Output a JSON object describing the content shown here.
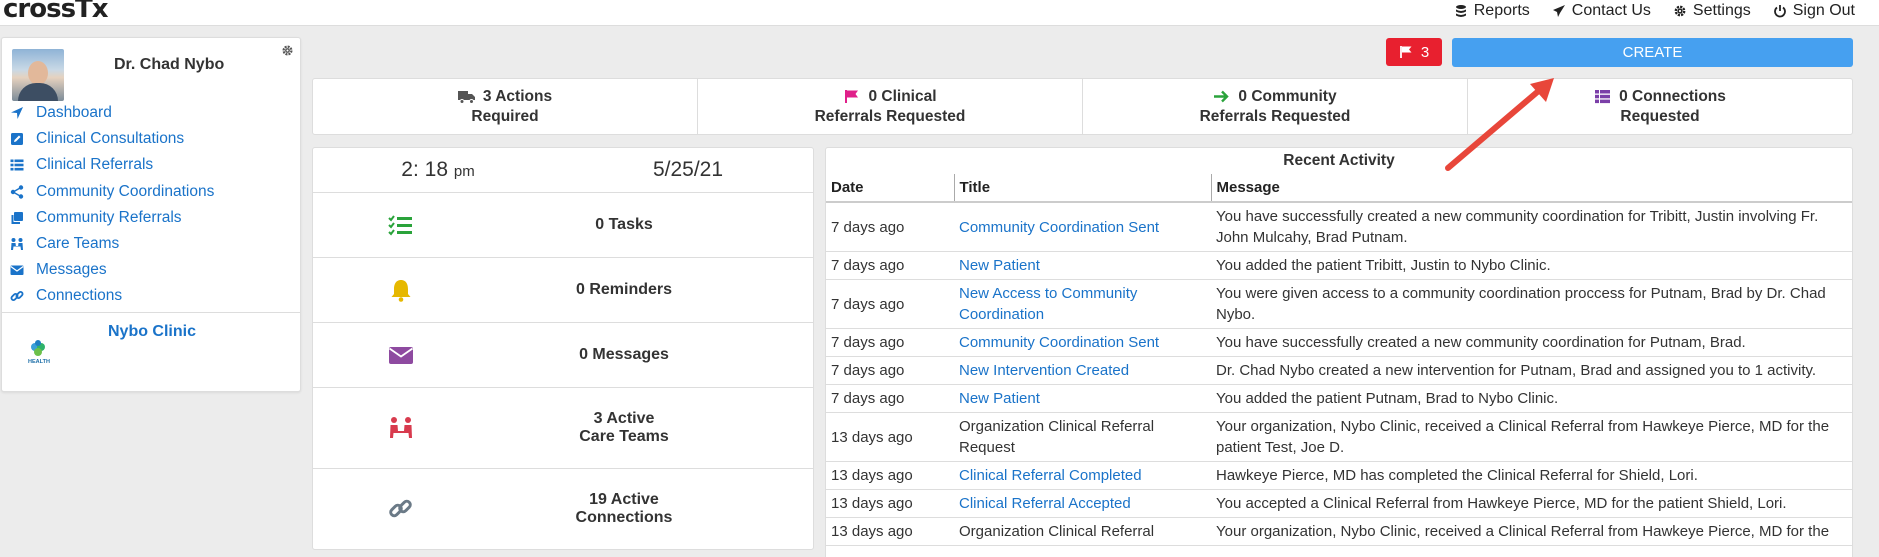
{
  "brand": {
    "logo_text": "crossTx"
  },
  "topnav": [
    {
      "label": "Reports",
      "icon": "database-icon"
    },
    {
      "label": "Contact Us",
      "icon": "send-icon"
    },
    {
      "label": "Settings",
      "icon": "gear-icon"
    },
    {
      "label": "Sign Out",
      "icon": "power-icon"
    }
  ],
  "profile": {
    "name": "Dr. Chad Nybo"
  },
  "sidebar": {
    "items": [
      {
        "label": "Dashboard",
        "icon": "location-arrow-icon"
      },
      {
        "label": "Clinical Consultations",
        "icon": "edit-square-icon"
      },
      {
        "label": "Clinical Referrals",
        "icon": "list-icon"
      },
      {
        "label": "Community Coordinations",
        "icon": "share-icon"
      },
      {
        "label": "Community Referrals",
        "icon": "clone-icon"
      },
      {
        "label": "Care Teams",
        "icon": "people-icon"
      },
      {
        "label": "Messages",
        "icon": "envelope-icon"
      },
      {
        "label": "Connections",
        "icon": "link-icon"
      }
    ],
    "clinic_name": "Nybo Clinic",
    "clinic_logo_text": "HEALTH"
  },
  "flag_count": "3",
  "create_label": "CREATE",
  "stats": [
    {
      "line1": "3 Actions",
      "line2": "Required",
      "icon": "truck-icon",
      "color": "#555555"
    },
    {
      "line1": "0 Clinical",
      "line2": "Referrals Requested",
      "icon": "flag-icon",
      "color": "#e0208a"
    },
    {
      "line1": "0 Community",
      "line2": "Referrals Requested",
      "icon": "arrow-right-icon",
      "color": "#2aa33b"
    },
    {
      "line1": "0 Connections",
      "line2": "Requested",
      "icon": "list-icon",
      "color": "#7b3fa8"
    }
  ],
  "clock": {
    "time": "2: 18",
    "ampm": "pm",
    "date": "5/25/21"
  },
  "widgets": [
    {
      "label": "0 Tasks",
      "icon": "tasks-icon",
      "color": "#2aa33b"
    },
    {
      "label": "0 Reminders",
      "icon": "bell-icon",
      "color": "#e6b800"
    },
    {
      "label": "0 Messages",
      "icon": "envelope-icon",
      "color": "#8e4aa0"
    },
    {
      "label": "3 Active",
      "label2": "Care Teams",
      "icon": "people-icon",
      "color": "#d83b4e"
    },
    {
      "label": "19 Active",
      "label2": "Connections",
      "icon": "link-icon",
      "color": "#6b7a87"
    }
  ],
  "activity": {
    "title": "Recent Activity",
    "columns": [
      "Date",
      "Title",
      "Message"
    ],
    "rows": [
      {
        "date": "7 days ago",
        "title": "Community Coordination Sent",
        "link": true,
        "message": "You have successfully created a new community coordination for Tribitt, Justin involving Fr. John Mulcahy, Brad Putnam."
      },
      {
        "date": "7 days ago",
        "title": "New Patient",
        "link": true,
        "message": "You added the patient Tribitt, Justin to Nybo Clinic."
      },
      {
        "date": "7 days ago",
        "title": "New Access to Community Coordination",
        "link": true,
        "message": "You were given access to a community coordination proccess for Putnam, Brad by Dr. Chad Nybo."
      },
      {
        "date": "7 days ago",
        "title": "Community Coordination Sent",
        "link": true,
        "message": "You have successfully created a new community coordination for Putnam, Brad."
      },
      {
        "date": "7 days ago",
        "title": "New Intervention Created",
        "link": true,
        "message": "Dr. Chad Nybo created a new intervention for Putnam, Brad and assigned you to 1 activity."
      },
      {
        "date": "7 days ago",
        "title": "New Patient",
        "link": true,
        "message": "You added the patient Putnam, Brad to Nybo Clinic."
      },
      {
        "date": "13 days ago",
        "title": "Organization Clinical Referral Request",
        "link": false,
        "message": "Your organization, Nybo Clinic, received a Clinical Referral from Hawkeye Pierce, MD for the patient Test, Joe D."
      },
      {
        "date": "13 days ago",
        "title": "Clinical Referral Completed",
        "link": true,
        "message": "Hawkeye Pierce, MD has completed the Clinical Referral for Shield, Lori."
      },
      {
        "date": "13 days ago",
        "title": "Clinical Referral Accepted",
        "link": true,
        "message": "You accepted a Clinical Referral from Hawkeye Pierce, MD for the patient Shield, Lori."
      },
      {
        "date": "13 days ago",
        "title": "Organization Clinical Referral",
        "link": false,
        "message": "Your organization, Nybo Clinic, received a Clinical Referral from Hawkeye Pierce, MD for the"
      }
    ]
  }
}
